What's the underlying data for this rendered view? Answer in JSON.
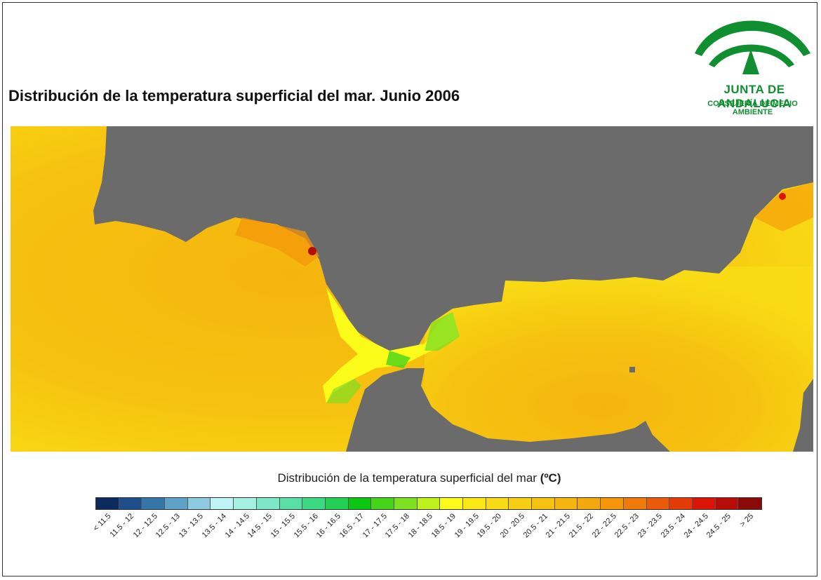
{
  "title": "Distribución de la temperatura superficial del mar. Junio 2006",
  "logo": {
    "name": "JUNTA DE ANDALUCIA",
    "subtitle": "CONSEJERÍA DE MEDIO AMBIENTE",
    "icon": "junta-andalucia-arc-icon",
    "color": "#0f8f2f"
  },
  "map": {
    "land_color": "#6b6b6b",
    "sea_color_dominant": "#f6c815",
    "icon": "sea-temperature-map"
  },
  "legend": {
    "title": "Distribución de la temperatura superficial del mar",
    "unit": "(ºC)",
    "classes": [
      {
        "label": "< 11.5",
        "color": "#0b2b5e"
      },
      {
        "label": "11.5 - 12",
        "color": "#1f4f8a"
      },
      {
        "label": "12 - 12.5",
        "color": "#3476a8"
      },
      {
        "label": "12.5 - 13",
        "color": "#5ea2c8"
      },
      {
        "label": "13 - 13.5",
        "color": "#8dcbe0"
      },
      {
        "label": "13.5 - 14",
        "color": "#bff3f5"
      },
      {
        "label": "14 - 14.5",
        "color": "#a4f1e2"
      },
      {
        "label": "14.5 - 15",
        "color": "#7ce8c8"
      },
      {
        "label": "15 - 15.5",
        "color": "#5ae0a6"
      },
      {
        "label": "15.5 - 16",
        "color": "#3dd882"
      },
      {
        "label": "16 - 16.5",
        "color": "#22d055"
      },
      {
        "label": "16.5 - 17",
        "color": "#0cc712"
      },
      {
        "label": "17 - 17.5",
        "color": "#46d41a"
      },
      {
        "label": "17.5 - 18",
        "color": "#7fdf22"
      },
      {
        "label": "18 - 18.5",
        "color": "#bdf01c"
      },
      {
        "label": "18.5 - 19",
        "color": "#fbfb1a"
      },
      {
        "label": "19 - 19.5",
        "color": "#f9e716"
      },
      {
        "label": "19.5 - 20",
        "color": "#f8db14"
      },
      {
        "label": "20 - 20.5",
        "color": "#f7cf12"
      },
      {
        "label": "20.5 - 21",
        "color": "#f6c210"
      },
      {
        "label": "21 - 21.5",
        "color": "#f5b50e"
      },
      {
        "label": "21.5 - 22",
        "color": "#f5a80c"
      },
      {
        "label": "22 - 22.5",
        "color": "#f59609"
      },
      {
        "label": "22.5 - 23",
        "color": "#f07a08"
      },
      {
        "label": "23 - 23.5",
        "color": "#ea5a08"
      },
      {
        "label": "23.5 - 24",
        "color": "#e33a08"
      },
      {
        "label": "24 - 24.5",
        "color": "#dc1408"
      },
      {
        "label": "24.5 - 25",
        "color": "#b80c0a"
      },
      {
        "label": "> 25",
        "color": "#8a0a0a"
      }
    ]
  }
}
